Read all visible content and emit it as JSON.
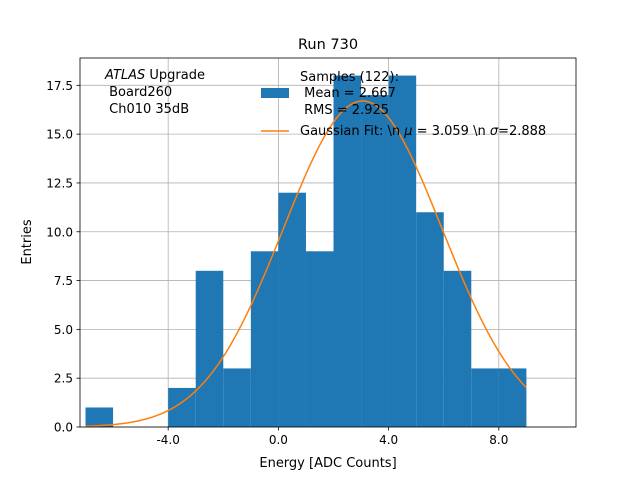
{
  "chart_data": {
    "type": "bar",
    "title": "Run 730",
    "xlabel": "Energy [ADC Counts]",
    "ylabel": "Entries",
    "xlim": [
      -7.2,
      10.8
    ],
    "ylim": [
      0,
      18.9
    ],
    "grid": true,
    "x_ticks": [
      -4.0,
      0.0,
      4.0,
      8.0
    ],
    "x_tick_labels": [
      "-4.0",
      "0.0",
      "4.0",
      "8.0"
    ],
    "y_ticks": [
      0.0,
      2.5,
      5.0,
      7.5,
      10.0,
      12.5,
      15.0,
      17.5
    ],
    "y_tick_labels": [
      "0.0",
      "2.5",
      "5.0",
      "7.5",
      "10.0",
      "12.5",
      "15.0",
      "17.5"
    ],
    "bin_edges": [
      -7.0,
      -6.0,
      -5.0,
      -4.0,
      -3.0,
      -2.0,
      -1.0,
      0.0,
      1.0,
      2.0,
      3.0,
      4.0,
      5.0,
      6.0,
      7.0,
      8.0,
      9.0
    ],
    "counts": [
      1,
      0,
      0,
      2,
      8,
      3,
      9,
      12,
      9,
      18,
      17,
      18,
      11,
      8,
      3,
      3
    ],
    "bar_color": "#1f77b4",
    "fit": {
      "label": "Gaussian Fit: \\n $\\mu$ = 3.059 \\n $\\sigma$=2.888",
      "label_parts": [
        "Gaussian Fit: \\n ",
        "μ",
        " = 3.059 \\n ",
        "σ",
        "=2.888"
      ],
      "mu": 3.059,
      "sigma": 2.888,
      "amplitude": 16.7,
      "x_range": [
        -7.0,
        9.0
      ],
      "color": "#ff7f0e"
    },
    "legend": {
      "location": "top-right",
      "hist_label_lines": [
        "Samples (122):",
        " Mean = 2.667",
        " RMS = 2.925"
      ]
    },
    "annotation": {
      "location": "top-left",
      "experiment": "ATLAS",
      "experiment_suffix": " Upgrade",
      "lines": [
        " Board260",
        " Ch010 35dB"
      ]
    }
  }
}
